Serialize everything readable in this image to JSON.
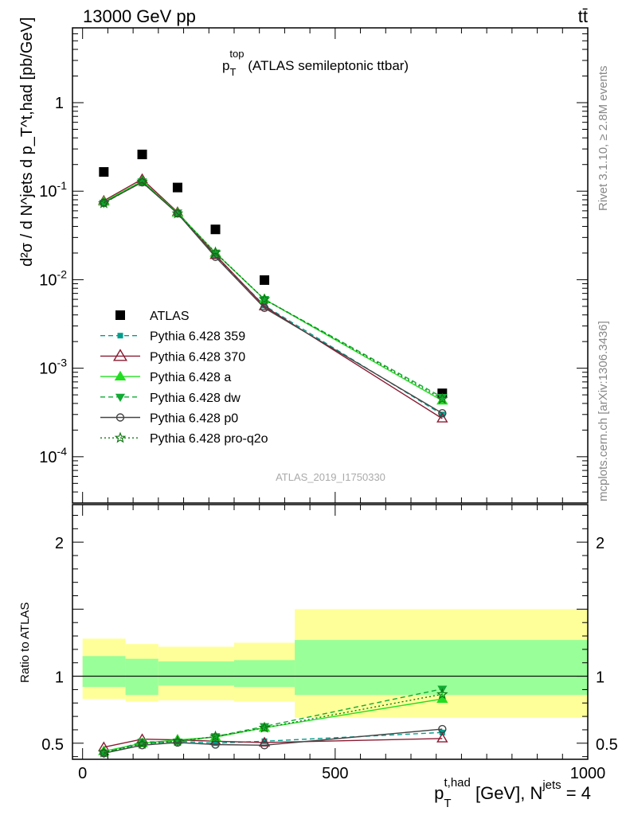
{
  "header": {
    "energy": "13000 GeV pp",
    "process": "tt̄"
  },
  "side_labels": {
    "rivet": "Rivet 3.1.10, ≥ 2.8M events",
    "mcplots": "mcplots.cern.ch [arXiv:1306.3436]"
  },
  "analysis_id": "ATLAS_2019_I1750330",
  "colors": {
    "atlas": "#000000",
    "p359": "#009e8c",
    "p370": "#8b1a32",
    "pa": "#22dd22",
    "pdw": "#11aa33",
    "pp0": "#444444",
    "ppro": "#117711",
    "band_inner": "#99ff99",
    "band_outer": "#ffff99"
  },
  "chart_data": [
    {
      "type": "line",
      "title": "p_T^top (ATLAS semileptonic ttbar)",
      "title_parts": {
        "main": "p",
        "sub": "T",
        "sup": "top",
        "rest": " (ATLAS semileptonic ttbar)"
      },
      "ylabel": "d²σ / d N^jets d p_T^t,had [pb/GeV]",
      "y_scale": "log",
      "ylim": [
        3e-05,
        7
      ],
      "xlim": [
        -20,
        1000
      ],
      "y_tick_labels": [
        "1",
        "10^-1",
        "10^-2",
        "10^-3",
        "10^-4"
      ],
      "legend": "left-middle",
      "x": [
        42,
        118,
        188,
        263,
        360,
        712
      ],
      "series": [
        {
          "name": "ATLAS",
          "values": [
            0.165,
            0.26,
            0.11,
            0.037,
            0.0099,
            0.00052
          ]
        },
        {
          "name": "Pythia 6.428 359",
          "values": [
            0.074,
            0.128,
            0.057,
            0.0184,
            0.0051,
            0.0003
          ]
        },
        {
          "name": "Pythia 6.428 370",
          "values": [
            0.078,
            0.137,
            0.058,
            0.019,
            0.005,
            0.00027
          ]
        },
        {
          "name": "Pythia 6.428 a",
          "values": [
            0.076,
            0.13,
            0.057,
            0.0201,
            0.006,
            0.00043
          ]
        },
        {
          "name": "Pythia 6.428 dw",
          "values": [
            0.073,
            0.128,
            0.057,
            0.0201,
            0.006,
            0.00047
          ]
        },
        {
          "name": "Pythia 6.428 p0",
          "values": [
            0.074,
            0.126,
            0.056,
            0.0181,
            0.0048,
            0.00031
          ]
        },
        {
          "name": "Pythia 6.428 pro-q2o",
          "values": [
            0.073,
            0.128,
            0.056,
            0.0203,
            0.006,
            0.00045
          ]
        }
      ]
    },
    {
      "type": "line",
      "ylabel": "Ratio to ATLAS",
      "xlabel": "p_T^t,had [GeV], N^jets = 4",
      "xlabel_parts": {
        "p": "p",
        "sub": "T",
        "sup": "t,had",
        "rest": " [GeV], N",
        "sup2": "jets",
        "tail": " = 4"
      },
      "xlim": [
        -20,
        1000
      ],
      "ylim": [
        0.38,
        2.28
      ],
      "x_tick_labels": [
        "0",
        "500",
        "1000"
      ],
      "y_tick_labels": [
        "0.5",
        "1",
        "2"
      ],
      "x": [
        42,
        118,
        188,
        263,
        360,
        712
      ],
      "bands": {
        "edges": [
          0,
          85,
          150,
          300,
          420,
          1000
        ],
        "inner": [
          [
            0.92,
            1.15
          ],
          [
            0.86,
            1.13
          ],
          [
            0.93,
            1.11
          ],
          [
            0.92,
            1.12
          ],
          [
            0.86,
            1.27
          ]
        ],
        "outer": [
          [
            0.83,
            1.28
          ],
          [
            0.81,
            1.24
          ],
          [
            0.82,
            1.22
          ],
          [
            0.81,
            1.25
          ],
          [
            0.69,
            1.5
          ]
        ]
      },
      "series": [
        {
          "name": "Pythia 6.428 359",
          "values": [
            0.435,
            0.495,
            0.515,
            0.5,
            0.515,
            0.58
          ]
        },
        {
          "name": "Pythia 6.428 370",
          "values": [
            0.47,
            0.53,
            0.525,
            0.515,
            0.505,
            0.535
          ]
        },
        {
          "name": "Pythia 6.428 a",
          "values": [
            0.44,
            0.5,
            0.525,
            0.545,
            0.615,
            0.83
          ]
        },
        {
          "name": "Pythia 6.428 dw",
          "values": [
            0.425,
            0.51,
            0.51,
            0.55,
            0.625,
            0.905
          ]
        },
        {
          "name": "Pythia 6.428 p0",
          "values": [
            0.425,
            0.485,
            0.505,
            0.49,
            0.485,
            0.605
          ]
        },
        {
          "name": "Pythia 6.428 pro-q2o",
          "values": [
            0.43,
            0.495,
            0.515,
            0.55,
            0.615,
            0.865
          ]
        }
      ]
    }
  ]
}
